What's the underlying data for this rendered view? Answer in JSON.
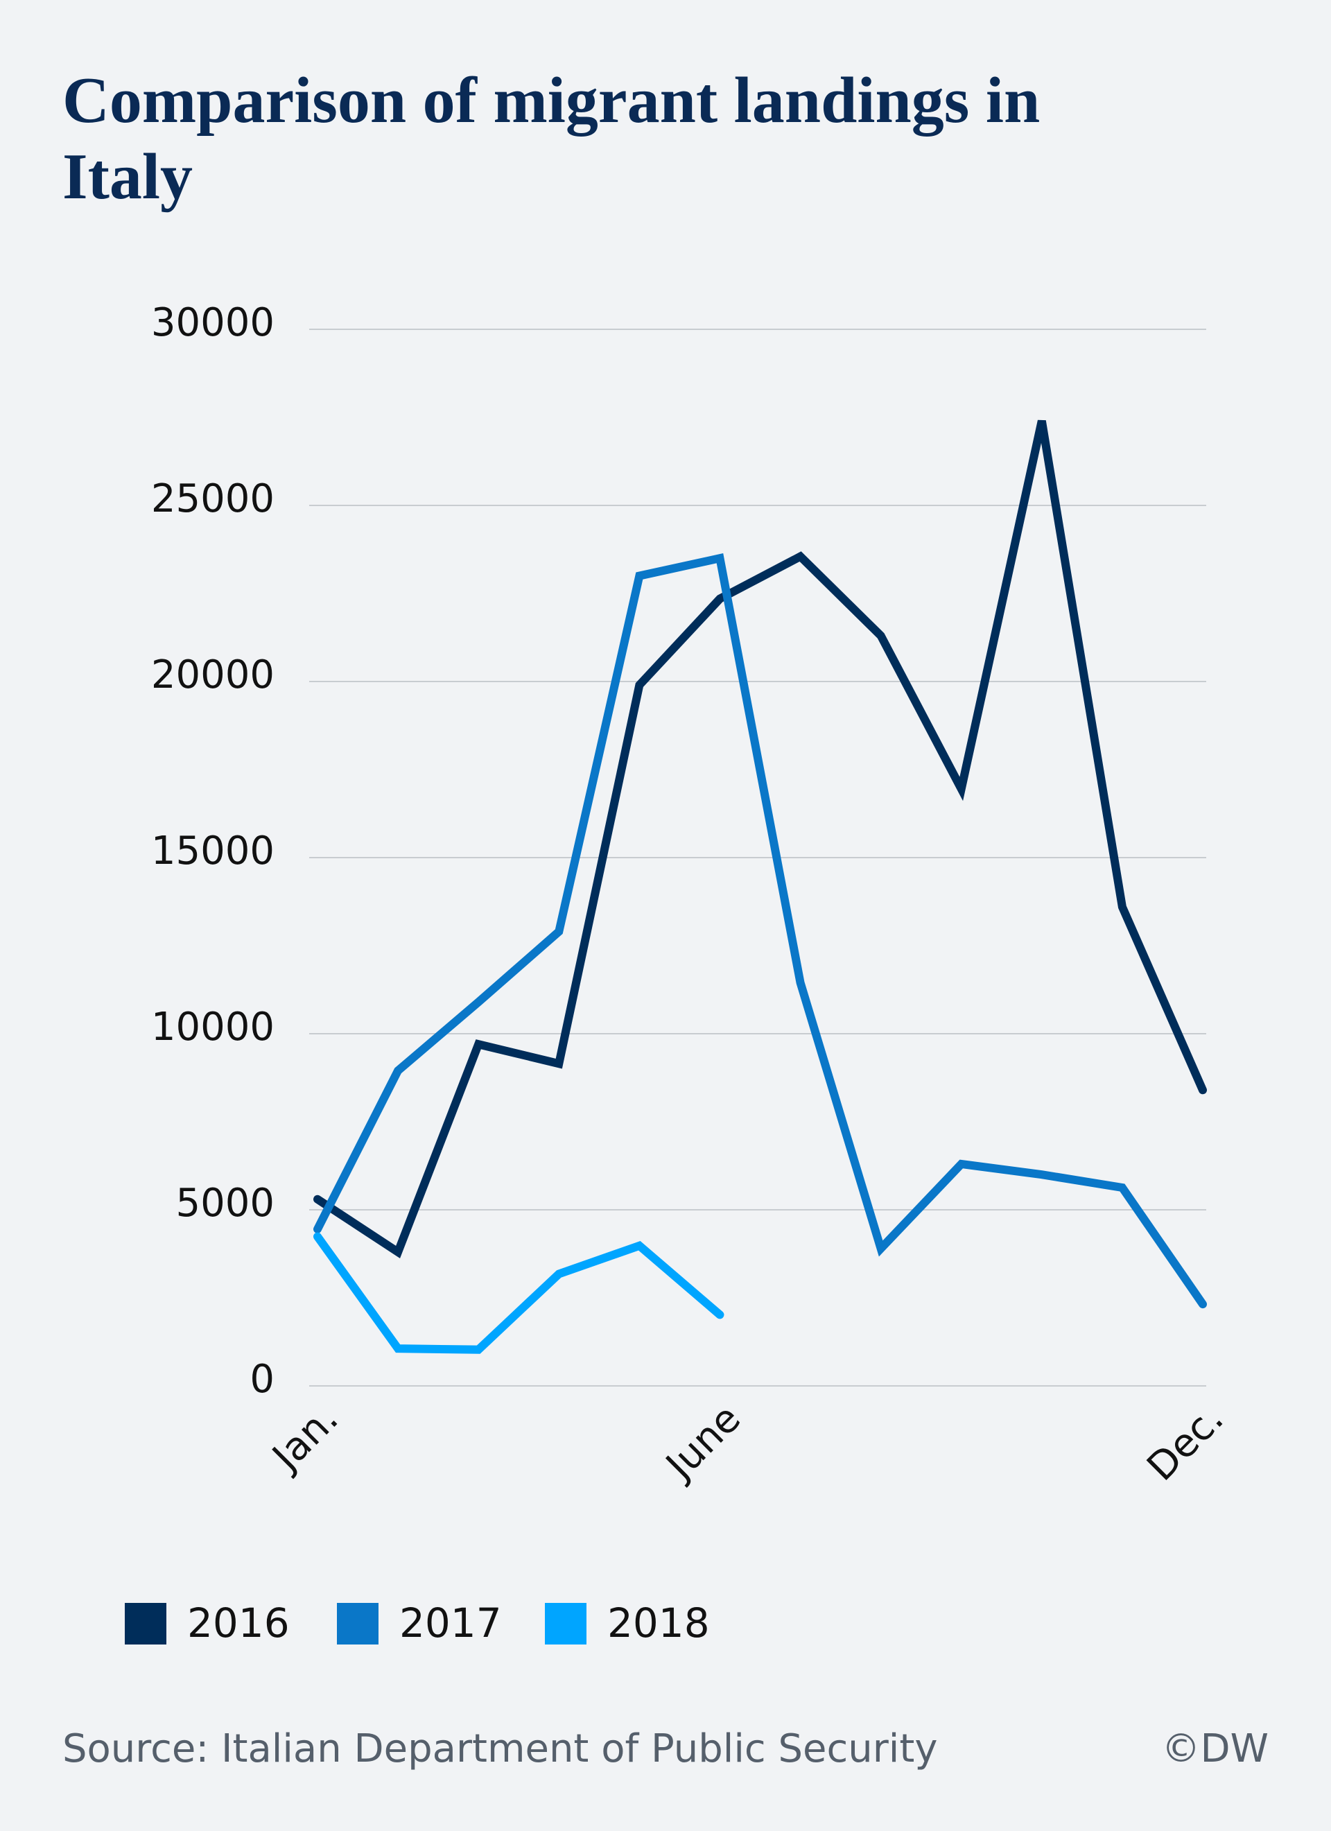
{
  "chart_data": {
    "type": "line",
    "title": "Comparison of migrant landings in Italy",
    "categories": [
      "Jan.",
      null,
      null,
      null,
      null,
      "June",
      null,
      null,
      null,
      null,
      null,
      "Dec."
    ],
    "series": [
      {
        "name": "2016",
        "color": "#002d5a",
        "values": [
          5300,
          3800,
          9700,
          9150,
          19900,
          22350,
          23550,
          21300,
          16950,
          27400,
          13600,
          8400
        ]
      },
      {
        "name": "2017",
        "color": "#0a77c8",
        "values": [
          4450,
          8950,
          10900,
          12900,
          23000,
          23500,
          11450,
          3900,
          6300,
          6000,
          5630,
          2320
        ]
      },
      {
        "name": "2018",
        "color": "#00a5ff",
        "values": [
          4240,
          1060,
          1030,
          3180,
          3980,
          2020,
          null,
          null,
          null,
          null,
          null,
          null
        ]
      }
    ],
    "ylim": [
      0,
      30000
    ],
    "yticks": [
      0,
      5000,
      10000,
      15000,
      20000,
      25000,
      30000
    ],
    "grid": true,
    "source": "Source: Italian Department of Public Security",
    "credit": "©DW"
  }
}
